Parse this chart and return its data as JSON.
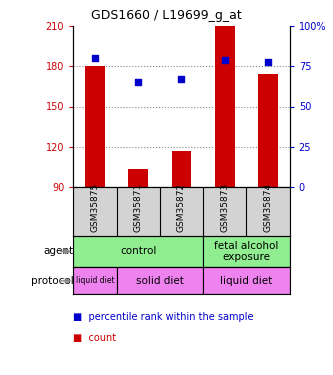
{
  "title": "GDS1660 / L19699_g_at",
  "samples": [
    "GSM35875",
    "GSM35871",
    "GSM35872",
    "GSM35873",
    "GSM35874"
  ],
  "bar_values": [
    180,
    103,
    117,
    210,
    174
  ],
  "bar_bottom": 90,
  "percentile_values": [
    80,
    65,
    67,
    79,
    78
  ],
  "left_ylim": [
    90,
    210
  ],
  "left_yticks": [
    90,
    120,
    150,
    180,
    210
  ],
  "right_ylim": [
    0,
    100
  ],
  "right_yticks": [
    0,
    25,
    50,
    75,
    100
  ],
  "right_yticklabels": [
    "0",
    "25",
    "50",
    "75",
    "100%"
  ],
  "bar_color": "#cc0000",
  "scatter_color": "#0000cc",
  "agent_defs": [
    {
      "text": "control",
      "start": 0,
      "end": 2,
      "color": "#90ee90"
    },
    {
      "text": "fetal alcohol\nexposure",
      "start": 3,
      "end": 4,
      "color": "#90ee90"
    }
  ],
  "protocol_defs": [
    {
      "text": "liquid diet",
      "start": 0,
      "end": 0,
      "color": "#ee82ee"
    },
    {
      "text": "solid diet",
      "start": 1,
      "end": 2,
      "color": "#ee82ee"
    },
    {
      "text": "liquid diet",
      "start": 3,
      "end": 4,
      "color": "#ee82ee"
    }
  ],
  "agent_row_label": "agent",
  "protocol_row_label": "protocol",
  "legend_items": [
    {
      "color": "#cc0000",
      "label": "count"
    },
    {
      "color": "#0000cc",
      "label": "percentile rank within the sample"
    }
  ],
  "dotted_line_color": "#888888",
  "background_color": "#ffffff",
  "label_area_bg": "#d3d3d3",
  "title_fontsize": 9,
  "axis_fontsize": 7,
  "sample_fontsize": 6.5,
  "row_fontsize": 7.5,
  "legend_fontsize": 7
}
